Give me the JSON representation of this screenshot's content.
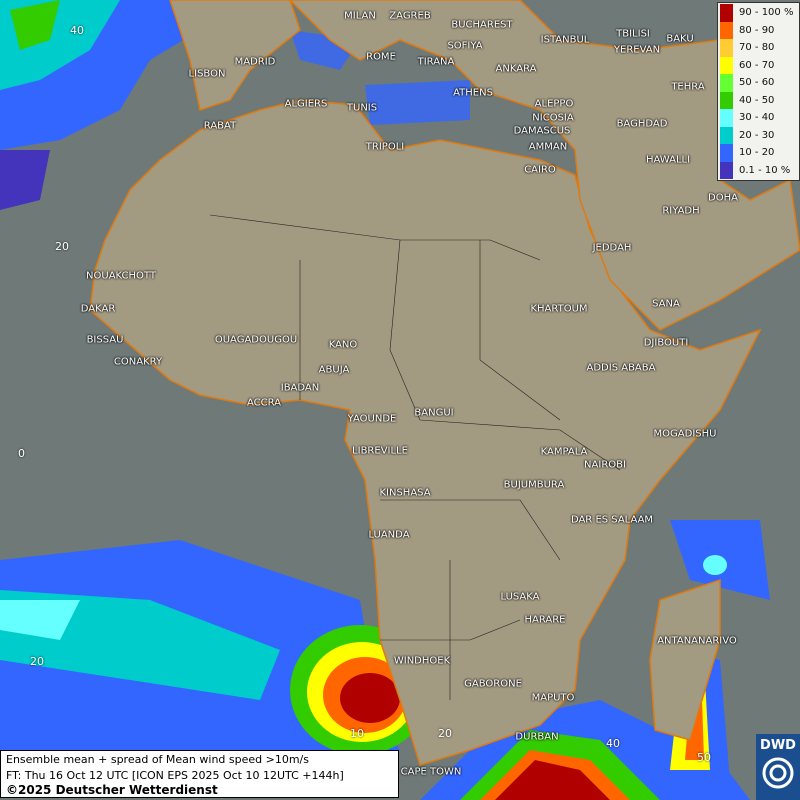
{
  "legend": {
    "items": [
      {
        "label": "90 - 100 %",
        "color": "#b00000"
      },
      {
        "label": "80 - 90",
        "color": "#ff6600"
      },
      {
        "label": "70 - 80",
        "color": "#ffcc33"
      },
      {
        "label": "60 - 70",
        "color": "#ffff00"
      },
      {
        "label": "50 - 60",
        "color": "#66ff33"
      },
      {
        "label": "40 - 50",
        "color": "#33cc00"
      },
      {
        "label": "30 - 40",
        "color": "#66ffff"
      },
      {
        "label": "20 - 30",
        "color": "#00cccc"
      },
      {
        "label": "10 - 20",
        "color": "#3366ff"
      },
      {
        "label": "0.1 - 10 %",
        "color": "#4433bb"
      }
    ]
  },
  "info": {
    "line1": "Ensemble mean + spread of Mean wind speed >10m/s",
    "line2": "FT: Thu 16 Oct 12 UTC [ICON EPS 2025 Oct 10 12UTC +144h]",
    "line3": "©2025 Deutscher Wetterdienst"
  },
  "logo": {
    "text": "DWD"
  },
  "grid_labels": [
    "40",
    "20",
    "0",
    "20",
    "10",
    "20",
    "40",
    "50"
  ],
  "cities": [
    "MILAN",
    "ZAGREB",
    "BUCHAREST",
    "SOFIYA",
    "TBILISI",
    "YEREVAN",
    "BAKU",
    "MADRID",
    "ROME",
    "TIRANA",
    "ISTANBUL",
    "ANKARA",
    "LISBON",
    "ALGIERS",
    "TUNIS",
    "ATHENS",
    "ALEPPO",
    "TEHRA",
    "RABAT",
    "NICOSIA",
    "BAGHDAD",
    "DAMASCUS",
    "TRIPOLI",
    "AMMAN",
    "HAWALLI",
    "CAIRO",
    "DOHA",
    "RIYADH",
    "JEDDAH",
    "NOUAKCHOTT",
    "DAKAR",
    "KHARTOUM",
    "SANA",
    "BISSAU",
    "OUAGADOUGOU",
    "KANO",
    "DJIBOUTI",
    "CONAKRY",
    "ABUJA",
    "ADDIS ABABA",
    "IBADAN",
    "ACCRA",
    "YAOUNDE",
    "BANGUI",
    "MOGADISHU",
    "LIBREVILLE",
    "KAMPALA",
    "NAIROBI",
    "KINSHASA",
    "BUJUMBURA",
    "DAR ES SALAAM",
    "LUANDA",
    "LUSAKA",
    "HARARE",
    "ANTANANARIVO",
    "WINDHOEK",
    "GABORONE",
    "MAPUTO",
    "DURBAN",
    "CAPE TOWN"
  ]
}
